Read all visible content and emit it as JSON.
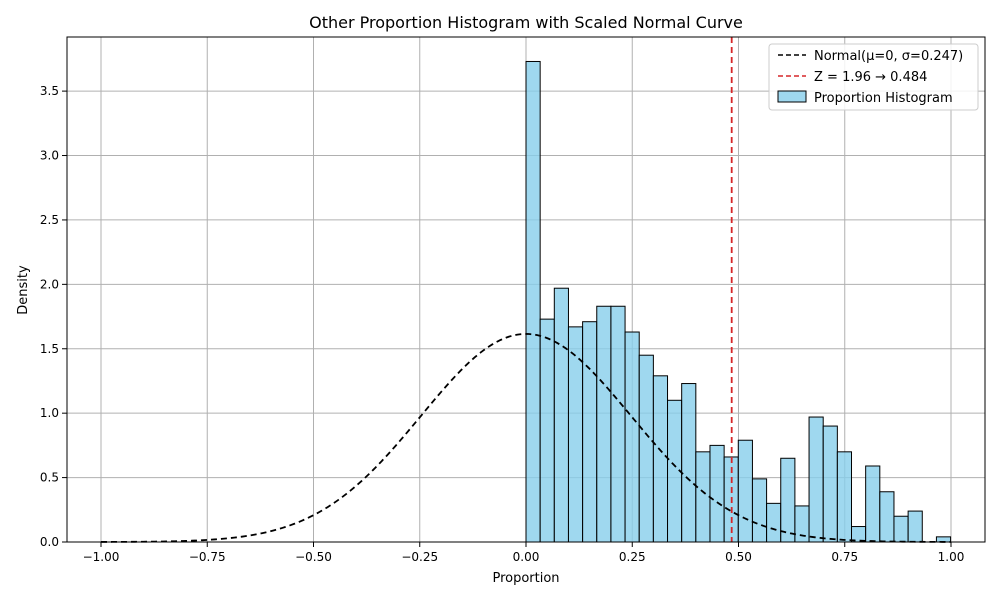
{
  "chart_data": {
    "type": "bar",
    "title": "Other Proportion Histogram with Scaled Normal Curve",
    "xlabel": "Proportion",
    "ylabel": "Density",
    "xlim": [
      -1.08,
      1.08
    ],
    "ylim": [
      0,
      3.92
    ],
    "xticks": [
      -1.0,
      -0.75,
      -0.5,
      -0.25,
      0.0,
      0.25,
      0.5,
      0.75,
      1.0
    ],
    "xtick_labels": [
      "−1.00",
      "−0.75",
      "−0.50",
      "−0.25",
      "0.00",
      "0.25",
      "0.50",
      "0.75",
      "1.00"
    ],
    "yticks": [
      0.0,
      0.5,
      1.0,
      1.5,
      2.0,
      2.5,
      3.0,
      3.5
    ],
    "ytick_labels": [
      "0.0",
      "0.5",
      "1.0",
      "1.5",
      "2.0",
      "2.5",
      "3.0",
      "3.5"
    ],
    "grid": true,
    "legend_position": "top-right",
    "histogram": {
      "name": "Proportion Histogram",
      "color": "#87ceeb",
      "edge_color": "#000000",
      "bin_start": 0.0,
      "bin_width": 0.0333,
      "values": [
        3.73,
        1.73,
        1.97,
        1.67,
        1.71,
        1.83,
        1.83,
        1.63,
        1.45,
        1.29,
        1.1,
        1.23,
        0.7,
        0.75,
        0.66,
        0.79,
        0.49,
        0.3,
        0.65,
        0.28,
        0.97,
        0.9,
        0.7,
        0.12,
        0.59,
        0.39,
        0.2,
        0.24,
        0.0,
        0.04
      ]
    },
    "normal_curve": {
      "name": "Normal(μ=0, σ=0.247)",
      "mu": 0,
      "sigma": 0.247,
      "peak": 1.615,
      "x_range": [
        -1.0,
        1.0
      ],
      "color": "#000000"
    },
    "threshold_line": {
      "name": "Z = 1.96 → 0.484",
      "x": 0.484,
      "color": "#d62728"
    }
  }
}
